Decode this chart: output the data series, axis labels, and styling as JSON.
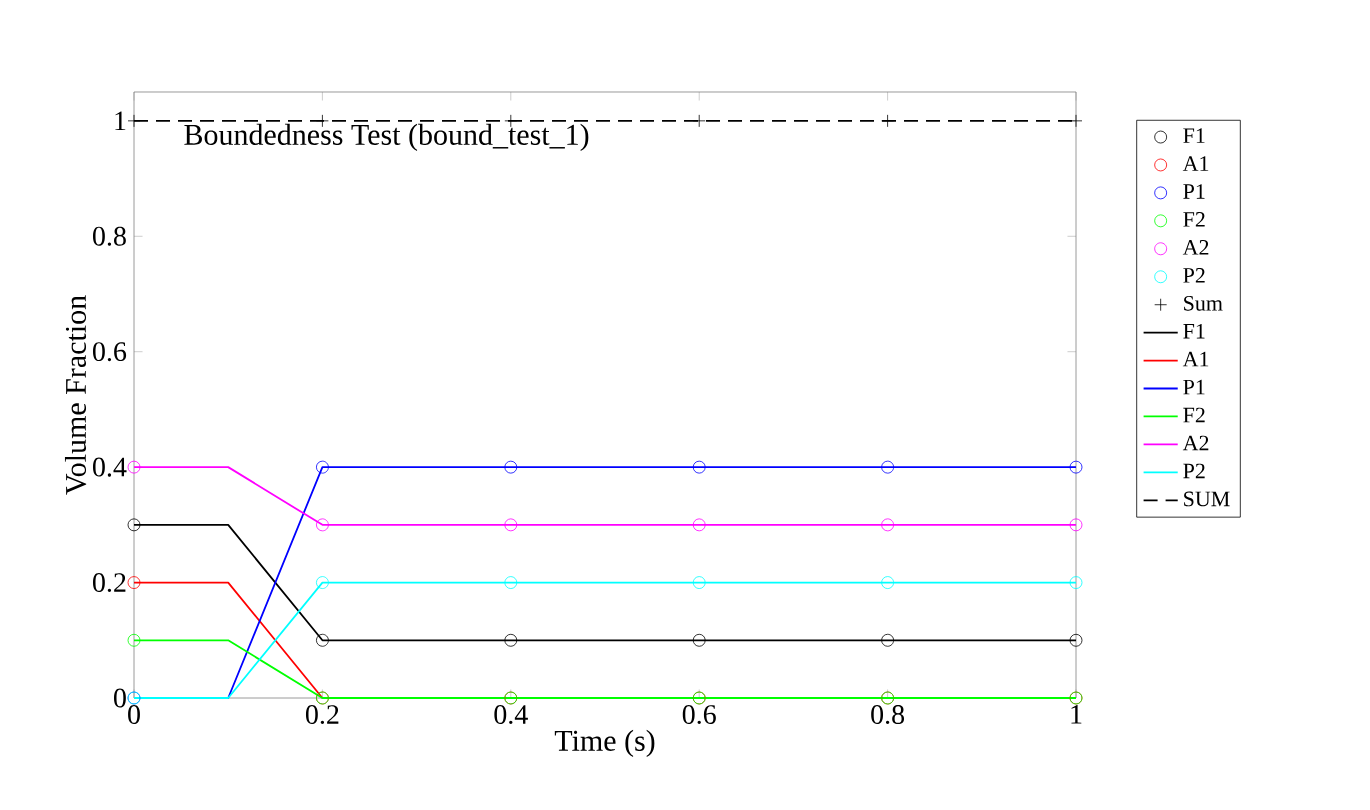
{
  "chart_data": {
    "type": "line",
    "title": "Boundedness Test (bound_test_1)",
    "xlabel": "Time (s)",
    "ylabel": "Volume Fraction",
    "xlim": [
      0,
      1
    ],
    "ylim": [
      0,
      1.05
    ],
    "xticks": [
      0,
      0.2,
      0.4,
      0.6,
      0.8,
      1
    ],
    "yticks": [
      0,
      0.2,
      0.4,
      0.6,
      0.8,
      1
    ],
    "grid": false,
    "legend": "right",
    "series": [
      {
        "name": "F1",
        "type": "scatter",
        "marker": "circle",
        "color": "#000000",
        "x": [
          0,
          0.2,
          0.4,
          0.6,
          0.8,
          1
        ],
        "values": [
          0.3,
          0.1,
          0.1,
          0.1,
          0.1,
          0.1
        ]
      },
      {
        "name": "A1",
        "type": "scatter",
        "marker": "circle",
        "color": "#ff0000",
        "x": [
          0,
          0.2,
          0.4,
          0.6,
          0.8,
          1
        ],
        "values": [
          0.2,
          0,
          0,
          0,
          0,
          0
        ]
      },
      {
        "name": "P1",
        "type": "scatter",
        "marker": "circle",
        "color": "#0000ff",
        "x": [
          0,
          0.2,
          0.4,
          0.6,
          0.8,
          1
        ],
        "values": [
          0,
          0.4,
          0.4,
          0.4,
          0.4,
          0.4
        ]
      },
      {
        "name": "F2",
        "type": "scatter",
        "marker": "circle",
        "color": "#00ff00",
        "x": [
          0,
          0.2,
          0.4,
          0.6,
          0.8,
          1
        ],
        "values": [
          0.1,
          0,
          0,
          0,
          0,
          0
        ]
      },
      {
        "name": "A2",
        "type": "scatter",
        "marker": "circle",
        "color": "#ff00ff",
        "x": [
          0,
          0.2,
          0.4,
          0.6,
          0.8,
          1
        ],
        "values": [
          0.4,
          0.3,
          0.3,
          0.3,
          0.3,
          0.3
        ]
      },
      {
        "name": "P2",
        "type": "scatter",
        "marker": "circle",
        "color": "#00ffff",
        "x": [
          0,
          0.2,
          0.4,
          0.6,
          0.8,
          1
        ],
        "values": [
          0,
          0.2,
          0.2,
          0.2,
          0.2,
          0.2
        ]
      },
      {
        "name": "Sum",
        "type": "scatter",
        "marker": "cross",
        "color": "#000000",
        "x": [
          0,
          0.2,
          0.4,
          0.6,
          0.8,
          1
        ],
        "values": [
          1,
          1,
          1,
          1,
          1,
          1
        ]
      },
      {
        "name": "F1",
        "line_style": "solid",
        "color": "#000000",
        "x": [
          0,
          0.1,
          0.2,
          0.4,
          0.6,
          0.8,
          1
        ],
        "values": [
          0.3,
          0.3,
          0.1,
          0.1,
          0.1,
          0.1,
          0.1
        ]
      },
      {
        "name": "A1",
        "line_style": "solid",
        "color": "#ff0000",
        "x": [
          0,
          0.1,
          0.2
        ],
        "values": [
          0.2,
          0.2,
          0
        ]
      },
      {
        "name": "P1",
        "line_style": "solid",
        "color": "#0000ff",
        "x": [
          0,
          0.1,
          0.2,
          0.4,
          0.6,
          0.8,
          1
        ],
        "values": [
          0,
          0,
          0.4,
          0.4,
          0.4,
          0.4,
          0.4
        ]
      },
      {
        "name": "F2",
        "line_style": "solid",
        "color": "#00ff00",
        "x": [
          0,
          0.1,
          0.2,
          0.4,
          0.6,
          0.8,
          1
        ],
        "values": [
          0.1,
          0.1,
          0,
          0,
          0,
          0,
          0
        ]
      },
      {
        "name": "A2",
        "line_style": "solid",
        "color": "#ff00ff",
        "x": [
          0,
          0.1,
          0.2,
          0.4,
          0.6,
          0.8,
          1
        ],
        "values": [
          0.4,
          0.4,
          0.3,
          0.3,
          0.3,
          0.3,
          0.3
        ]
      },
      {
        "name": "P2",
        "line_style": "solid",
        "color": "#00ffff",
        "x": [
          0,
          0.1,
          0.2,
          0.4,
          0.6,
          0.8,
          1
        ],
        "values": [
          0,
          0,
          0.2,
          0.2,
          0.2,
          0.2,
          0.2
        ]
      },
      {
        "name": "SUM",
        "line_style": "dashed",
        "color": "#000000",
        "x": [
          0,
          0.2,
          0.4,
          0.6,
          0.8,
          1
        ],
        "values": [
          1,
          1,
          1,
          1,
          1,
          1
        ]
      }
    ]
  }
}
